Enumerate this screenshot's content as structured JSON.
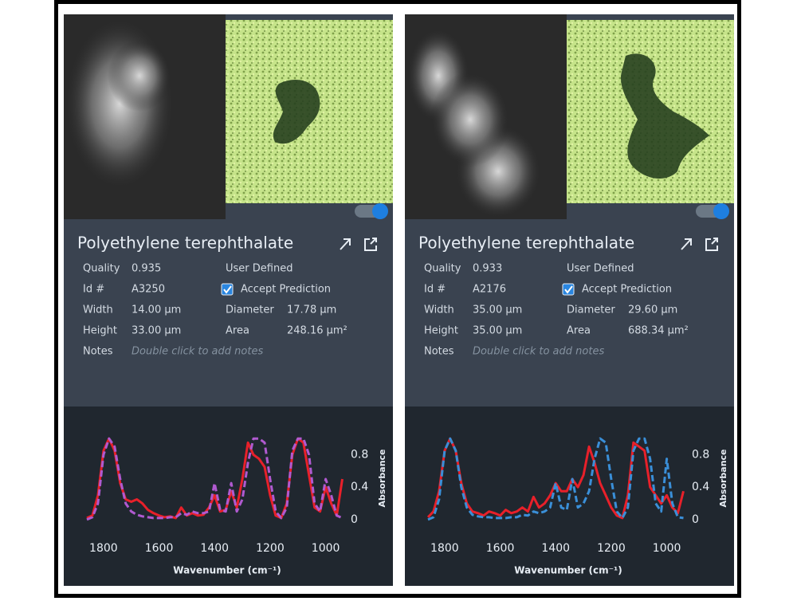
{
  "panels": [
    {
      "title": "Polyethylene terephthalate",
      "fields": [
        {
          "label": "Quality",
          "value": "0.935"
        },
        {
          "label": "Id #",
          "value": "A3250"
        },
        {
          "label": "Width",
          "value": "14.00 µm"
        },
        {
          "label": "Height",
          "value": "33.00 µm"
        }
      ],
      "user_defined": "User Defined",
      "accept_prediction": {
        "label": "Accept Prediction",
        "checked": true
      },
      "measures": [
        {
          "label": "Diameter",
          "value": "17.78 µm"
        },
        {
          "label": "Area",
          "value": "248.16 µm²"
        }
      ],
      "notes": {
        "label": "Notes",
        "placeholder": "Double click to add notes"
      },
      "chart": {
        "type": "line",
        "x_label": "Wavenumber (cm⁻¹)",
        "y_label": "Absorbance",
        "x": [
          1860,
          1840,
          1820,
          1800,
          1780,
          1760,
          1740,
          1720,
          1700,
          1680,
          1660,
          1640,
          1620,
          1600,
          1580,
          1560,
          1540,
          1520,
          1500,
          1480,
          1460,
          1440,
          1420,
          1400,
          1380,
          1360,
          1340,
          1320,
          1300,
          1280,
          1260,
          1240,
          1220,
          1200,
          1180,
          1160,
          1140,
          1120,
          1100,
          1080,
          1060,
          1040,
          1020,
          1000,
          980,
          960,
          940
        ],
        "series": [
          {
            "color": "#e8202a",
            "dash": false,
            "values": [
              0.02,
              0.05,
              0.3,
              0.85,
              1.0,
              0.85,
              0.45,
              0.25,
              0.22,
              0.25,
              0.2,
              0.12,
              0.08,
              0.05,
              0.03,
              0.04,
              0.02,
              0.15,
              0.05,
              0.08,
              0.05,
              0.06,
              0.15,
              0.3,
              0.1,
              0.12,
              0.35,
              0.15,
              0.5,
              0.95,
              0.8,
              0.75,
              0.65,
              0.3,
              0.05,
              0.02,
              0.2,
              0.8,
              1.0,
              0.95,
              0.55,
              0.15,
              0.1,
              0.4,
              0.2,
              0.05,
              0.5
            ]
          },
          {
            "color": "#b05ad0",
            "dash": true,
            "values": [
              0.0,
              0.03,
              0.2,
              0.8,
              1.0,
              0.9,
              0.5,
              0.2,
              0.1,
              0.06,
              0.04,
              0.03,
              0.02,
              0.02,
              0.02,
              0.03,
              0.03,
              0.08,
              0.06,
              0.1,
              0.08,
              0.08,
              0.1,
              0.45,
              0.12,
              0.1,
              0.45,
              0.1,
              0.25,
              0.7,
              1.0,
              1.0,
              0.95,
              0.5,
              0.1,
              0.02,
              0.15,
              0.85,
              1.0,
              1.0,
              0.8,
              0.2,
              0.1,
              0.5,
              0.3,
              0.05,
              0.02
            ]
          }
        ],
        "xlim": [
          1880,
          930
        ],
        "ylim": [
          -0.05,
          1.1
        ],
        "xticks": [
          1800,
          1600,
          1400,
          1200,
          1000
        ],
        "yticks": [
          0,
          0.4,
          0.8
        ]
      }
    },
    {
      "title": "Polyethylene terephthalate",
      "fields": [
        {
          "label": "Quality",
          "value": "0.933"
        },
        {
          "label": "Id #",
          "value": "A2176"
        },
        {
          "label": "Width",
          "value": "35.00 µm"
        },
        {
          "label": "Height",
          "value": "35.00 µm"
        }
      ],
      "user_defined": "User Defined",
      "accept_prediction": {
        "label": "Accept Prediction",
        "checked": true
      },
      "measures": [
        {
          "label": "Diameter",
          "value": "29.60 µm"
        },
        {
          "label": "Area",
          "value": "688.34 µm²"
        }
      ],
      "notes": {
        "label": "Notes",
        "placeholder": "Double click to add notes"
      },
      "chart": {
        "type": "line",
        "x_label": "Wavenumber (cm⁻¹)",
        "y_label": "Absorbance",
        "x": [
          1860,
          1840,
          1820,
          1800,
          1780,
          1760,
          1740,
          1720,
          1700,
          1680,
          1660,
          1640,
          1620,
          1600,
          1580,
          1560,
          1540,
          1520,
          1500,
          1480,
          1460,
          1440,
          1420,
          1400,
          1380,
          1360,
          1340,
          1320,
          1300,
          1280,
          1260,
          1240,
          1220,
          1200,
          1180,
          1160,
          1140,
          1120,
          1100,
          1080,
          1060,
          1040,
          1020,
          1000,
          980,
          960,
          940
        ],
        "series": [
          {
            "color": "#e8202a",
            "dash": false,
            "values": [
              0.03,
              0.1,
              0.35,
              0.85,
              1.0,
              0.85,
              0.45,
              0.2,
              0.1,
              0.08,
              0.05,
              0.1,
              0.08,
              0.05,
              0.12,
              0.08,
              0.1,
              0.15,
              0.1,
              0.28,
              0.15,
              0.2,
              0.3,
              0.45,
              0.35,
              0.35,
              0.5,
              0.4,
              0.55,
              0.9,
              0.7,
              0.45,
              0.3,
              0.15,
              0.05,
              0.02,
              0.3,
              0.95,
              0.9,
              0.85,
              0.4,
              0.3,
              0.2,
              0.3,
              0.15,
              0.08,
              0.35
            ]
          },
          {
            "color": "#3a8fd8",
            "dash": true,
            "values": [
              0.0,
              0.03,
              0.25,
              0.85,
              1.0,
              0.85,
              0.4,
              0.15,
              0.06,
              0.04,
              0.03,
              0.03,
              0.02,
              0.02,
              0.02,
              0.03,
              0.03,
              0.06,
              0.05,
              0.1,
              0.08,
              0.1,
              0.15,
              0.45,
              0.15,
              0.12,
              0.5,
              0.15,
              0.2,
              0.35,
              0.75,
              1.0,
              0.95,
              0.5,
              0.1,
              0.02,
              0.15,
              0.85,
              1.0,
              1.0,
              0.75,
              0.2,
              0.1,
              0.75,
              0.2,
              0.03,
              0.02
            ]
          }
        ],
        "xlim": [
          1880,
          930
        ],
        "ylim": [
          -0.05,
          1.1
        ],
        "xticks": [
          1800,
          1600,
          1400,
          1200,
          1000
        ],
        "yticks": [
          0,
          0.4,
          0.8
        ]
      }
    }
  ]
}
